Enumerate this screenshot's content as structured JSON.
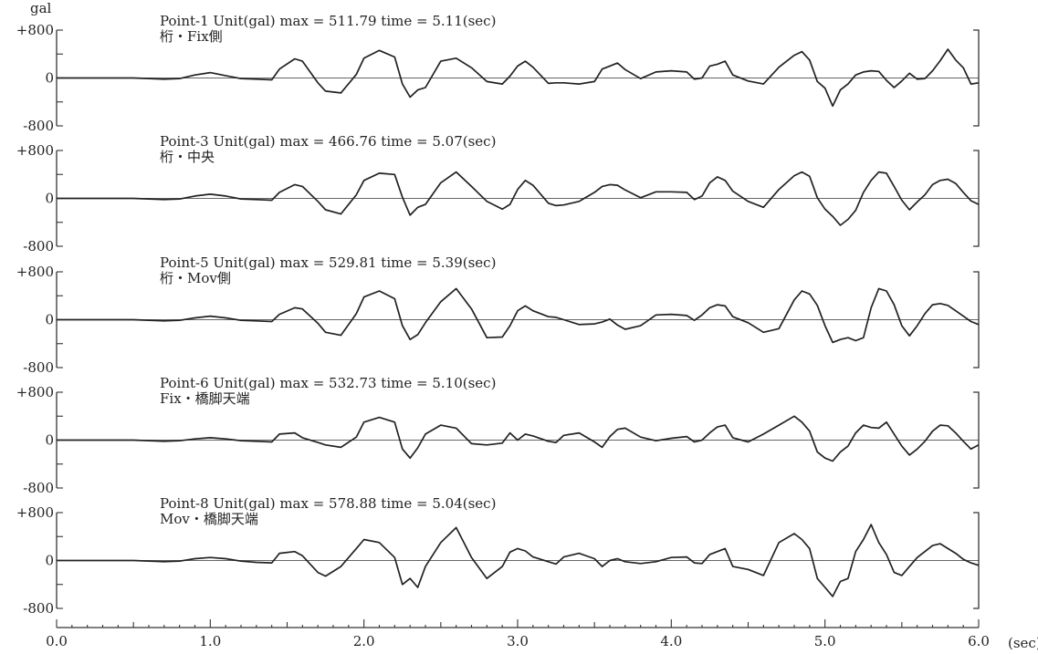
{
  "chart_data": {
    "type": "line",
    "yunit_label": "gal",
    "xunit_label": "(sec)",
    "xlim": [
      0,
      6
    ],
    "ylim": [
      -800,
      800
    ],
    "xticks": [
      "0.0",
      "1.0",
      "2.0",
      "3.0",
      "4.0",
      "5.0",
      "6.0"
    ],
    "yticks": [
      "+800",
      "0",
      "-800"
    ],
    "grid": false,
    "series": [
      {
        "title": "Point-1 Unit(gal) max = 511.79 time = 5.11(sec)",
        "subtitle": "桁・Fix側",
        "x": [
          0,
          0.5,
          0.7,
          0.8,
          0.9,
          1.0,
          1.1,
          1.2,
          1.3,
          1.4,
          1.45,
          1.55,
          1.6,
          1.7,
          1.75,
          1.85,
          1.95,
          2.0,
          2.1,
          2.2,
          2.25,
          2.3,
          2.35,
          2.4,
          2.5,
          2.6,
          2.7,
          2.8,
          2.9,
          2.95,
          3.0,
          3.05,
          3.1,
          3.2,
          3.25,
          3.3,
          3.4,
          3.5,
          3.55,
          3.6,
          3.65,
          3.7,
          3.8,
          3.9,
          4.0,
          4.1,
          4.15,
          4.2,
          4.25,
          4.3,
          4.35,
          4.4,
          4.5,
          4.6,
          4.7,
          4.8,
          4.85,
          4.9,
          4.95,
          5.0,
          5.05,
          5.1,
          5.15,
          5.2,
          5.25,
          5.3,
          5.35,
          5.4,
          5.45,
          5.5,
          5.55,
          5.6,
          5.65,
          5.7,
          5.75,
          5.8,
          5.85,
          5.9,
          5.95,
          6.0
        ],
        "values": [
          0,
          0,
          -20,
          -10,
          50,
          90,
          40,
          -10,
          -20,
          -30,
          150,
          320,
          280,
          -80,
          -220,
          -250,
          60,
          330,
          460,
          350,
          -100,
          -320,
          -200,
          -160,
          280,
          330,
          170,
          -60,
          -100,
          30,
          200,
          280,
          180,
          -90,
          -80,
          -80,
          -100,
          -60,
          150,
          200,
          250,
          140,
          -10,
          100,
          120,
          100,
          -20,
          0,
          200,
          230,
          280,
          50,
          -50,
          -100,
          180,
          380,
          440,
          300,
          -60,
          -170,
          -470,
          -200,
          -100,
          50,
          100,
          120,
          110,
          -40,
          -160,
          -50,
          80,
          -20,
          -10,
          120,
          290,
          480,
          300,
          170,
          -100,
          -80
        ]
      },
      {
        "title": "Point-3 Unit(gal) max = 466.76 time = 5.07(sec)",
        "subtitle": "桁・中央",
        "x": [
          0,
          0.5,
          0.7,
          0.8,
          0.9,
          1.0,
          1.1,
          1.2,
          1.3,
          1.4,
          1.45,
          1.55,
          1.6,
          1.7,
          1.75,
          1.85,
          1.95,
          2.0,
          2.1,
          2.2,
          2.25,
          2.3,
          2.35,
          2.4,
          2.5,
          2.6,
          2.7,
          2.8,
          2.9,
          2.95,
          3.0,
          3.05,
          3.1,
          3.2,
          3.25,
          3.3,
          3.4,
          3.5,
          3.55,
          3.6,
          3.65,
          3.7,
          3.8,
          3.9,
          4.0,
          4.1,
          4.15,
          4.2,
          4.25,
          4.3,
          4.35,
          4.4,
          4.5,
          4.6,
          4.7,
          4.8,
          4.85,
          4.9,
          4.95,
          5.0,
          5.05,
          5.1,
          5.15,
          5.2,
          5.25,
          5.3,
          5.35,
          5.4,
          5.45,
          5.5,
          5.55,
          5.6,
          5.65,
          5.7,
          5.75,
          5.8,
          5.85,
          5.9,
          5.95,
          6.0
        ],
        "values": [
          0,
          0,
          -20,
          -10,
          40,
          70,
          40,
          -10,
          -20,
          -30,
          100,
          230,
          200,
          -50,
          -190,
          -260,
          60,
          300,
          420,
          400,
          20,
          -280,
          -150,
          -100,
          260,
          440,
          200,
          -50,
          -180,
          -100,
          150,
          300,
          220,
          -80,
          -120,
          -110,
          -50,
          100,
          200,
          230,
          220,
          140,
          10,
          110,
          110,
          100,
          -20,
          40,
          260,
          360,
          300,
          120,
          -50,
          -150,
          150,
          380,
          440,
          370,
          10,
          -180,
          -300,
          -450,
          -350,
          -200,
          100,
          300,
          440,
          420,
          200,
          -30,
          -190,
          -60,
          60,
          230,
          300,
          320,
          250,
          100,
          -40,
          -100
        ]
      },
      {
        "title": "Point-5 Unit(gal) max = 529.81 time = 5.39(sec)",
        "subtitle": "桁・Mov側",
        "x": [
          0,
          0.5,
          0.7,
          0.8,
          0.9,
          1.0,
          1.1,
          1.2,
          1.3,
          1.4,
          1.45,
          1.55,
          1.6,
          1.7,
          1.75,
          1.85,
          1.95,
          2.0,
          2.1,
          2.2,
          2.25,
          2.3,
          2.35,
          2.4,
          2.5,
          2.6,
          2.7,
          2.8,
          2.9,
          2.95,
          3.0,
          3.05,
          3.1,
          3.2,
          3.25,
          3.3,
          3.4,
          3.5,
          3.55,
          3.6,
          3.65,
          3.7,
          3.8,
          3.9,
          4.0,
          4.1,
          4.15,
          4.2,
          4.25,
          4.3,
          4.35,
          4.4,
          4.5,
          4.6,
          4.7,
          4.8,
          4.85,
          4.9,
          4.95,
          5.0,
          5.05,
          5.1,
          5.15,
          5.2,
          5.25,
          5.3,
          5.35,
          5.4,
          5.45,
          5.5,
          5.55,
          5.6,
          5.65,
          5.7,
          5.75,
          5.8,
          5.85,
          5.9,
          5.95,
          6.0
        ],
        "values": [
          0,
          0,
          -20,
          -10,
          30,
          60,
          30,
          -10,
          -20,
          -30,
          90,
          200,
          180,
          -60,
          -210,
          -260,
          100,
          380,
          480,
          350,
          -100,
          -330,
          -250,
          -50,
          300,
          520,
          180,
          -300,
          -290,
          -100,
          150,
          230,
          150,
          50,
          40,
          0,
          -80,
          -70,
          -40,
          10,
          -90,
          -160,
          -100,
          80,
          90,
          70,
          -10,
          80,
          200,
          250,
          230,
          50,
          -50,
          -210,
          -150,
          330,
          480,
          430,
          240,
          -100,
          -380,
          -330,
          -300,
          -350,
          -300,
          200,
          520,
          480,
          250,
          -100,
          -270,
          -100,
          100,
          250,
          270,
          240,
          150,
          60,
          -30,
          -80
        ]
      },
      {
        "title": "Point-6 Unit(gal) max = 532.73 time = 5.10(sec)",
        "subtitle": "Fix・橋脚天端",
        "x": [
          0,
          0.5,
          0.7,
          0.8,
          0.9,
          1.0,
          1.1,
          1.2,
          1.3,
          1.4,
          1.45,
          1.55,
          1.6,
          1.7,
          1.75,
          1.85,
          1.95,
          2.0,
          2.1,
          2.2,
          2.25,
          2.3,
          2.35,
          2.4,
          2.5,
          2.6,
          2.7,
          2.8,
          2.9,
          2.95,
          3.0,
          3.05,
          3.1,
          3.2,
          3.25,
          3.3,
          3.4,
          3.5,
          3.55,
          3.6,
          3.65,
          3.7,
          3.8,
          3.9,
          4.0,
          4.1,
          4.15,
          4.2,
          4.25,
          4.3,
          4.35,
          4.4,
          4.5,
          4.6,
          4.7,
          4.8,
          4.85,
          4.9,
          4.95,
          5.0,
          5.05,
          5.1,
          5.15,
          5.2,
          5.25,
          5.3,
          5.35,
          5.4,
          5.45,
          5.5,
          5.55,
          5.6,
          5.65,
          5.7,
          5.75,
          5.8,
          5.85,
          5.9,
          5.95,
          6.0
        ],
        "values": [
          0,
          0,
          -20,
          -10,
          20,
          40,
          20,
          -10,
          -20,
          -30,
          100,
          120,
          40,
          -40,
          -80,
          -120,
          50,
          300,
          380,
          300,
          -150,
          -300,
          -130,
          100,
          250,
          200,
          -60,
          -80,
          -50,
          120,
          0,
          100,
          70,
          -20,
          -40,
          80,
          120,
          -30,
          -120,
          60,
          180,
          200,
          50,
          -10,
          30,
          60,
          -30,
          0,
          120,
          220,
          250,
          40,
          -30,
          100,
          250,
          400,
          300,
          150,
          -200,
          -300,
          -350,
          -200,
          -100,
          120,
          250,
          210,
          200,
          300,
          100,
          -100,
          -250,
          -150,
          -20,
          150,
          250,
          240,
          120,
          -20,
          -150,
          -80
        ]
      },
      {
        "title": "Point-8 Unit(gal) max = 578.88 time = 5.04(sec)",
        "subtitle": "Mov・橋脚天端",
        "x": [
          0,
          0.5,
          0.7,
          0.8,
          0.9,
          1.0,
          1.1,
          1.2,
          1.3,
          1.4,
          1.45,
          1.55,
          1.6,
          1.7,
          1.75,
          1.85,
          1.95,
          2.0,
          2.1,
          2.2,
          2.25,
          2.3,
          2.35,
          2.4,
          2.5,
          2.6,
          2.7,
          2.8,
          2.9,
          2.95,
          3.0,
          3.05,
          3.1,
          3.2,
          3.25,
          3.3,
          3.4,
          3.5,
          3.55,
          3.6,
          3.65,
          3.7,
          3.8,
          3.9,
          4.0,
          4.1,
          4.15,
          4.2,
          4.25,
          4.3,
          4.35,
          4.4,
          4.5,
          4.6,
          4.7,
          4.8,
          4.85,
          4.9,
          4.95,
          5.0,
          5.05,
          5.1,
          5.15,
          5.2,
          5.25,
          5.3,
          5.35,
          5.4,
          5.45,
          5.5,
          5.55,
          5.6,
          5.65,
          5.7,
          5.75,
          5.8,
          5.85,
          5.9,
          5.95,
          6.0
        ],
        "values": [
          0,
          0,
          -20,
          -10,
          30,
          50,
          30,
          -10,
          -30,
          -40,
          120,
          150,
          80,
          -200,
          -260,
          -100,
          200,
          350,
          300,
          50,
          -400,
          -300,
          -450,
          -100,
          300,
          550,
          50,
          -300,
          -100,
          140,
          200,
          160,
          60,
          -20,
          -60,
          60,
          120,
          30,
          -100,
          0,
          30,
          -20,
          -50,
          -20,
          50,
          60,
          -40,
          -50,
          100,
          150,
          200,
          -100,
          -150,
          -250,
          300,
          450,
          350,
          200,
          -300,
          -450,
          -600,
          -350,
          -300,
          150,
          350,
          600,
          300,
          100,
          -200,
          -250,
          -100,
          50,
          150,
          250,
          280,
          200,
          120,
          20,
          -40,
          -80
        ]
      }
    ]
  }
}
